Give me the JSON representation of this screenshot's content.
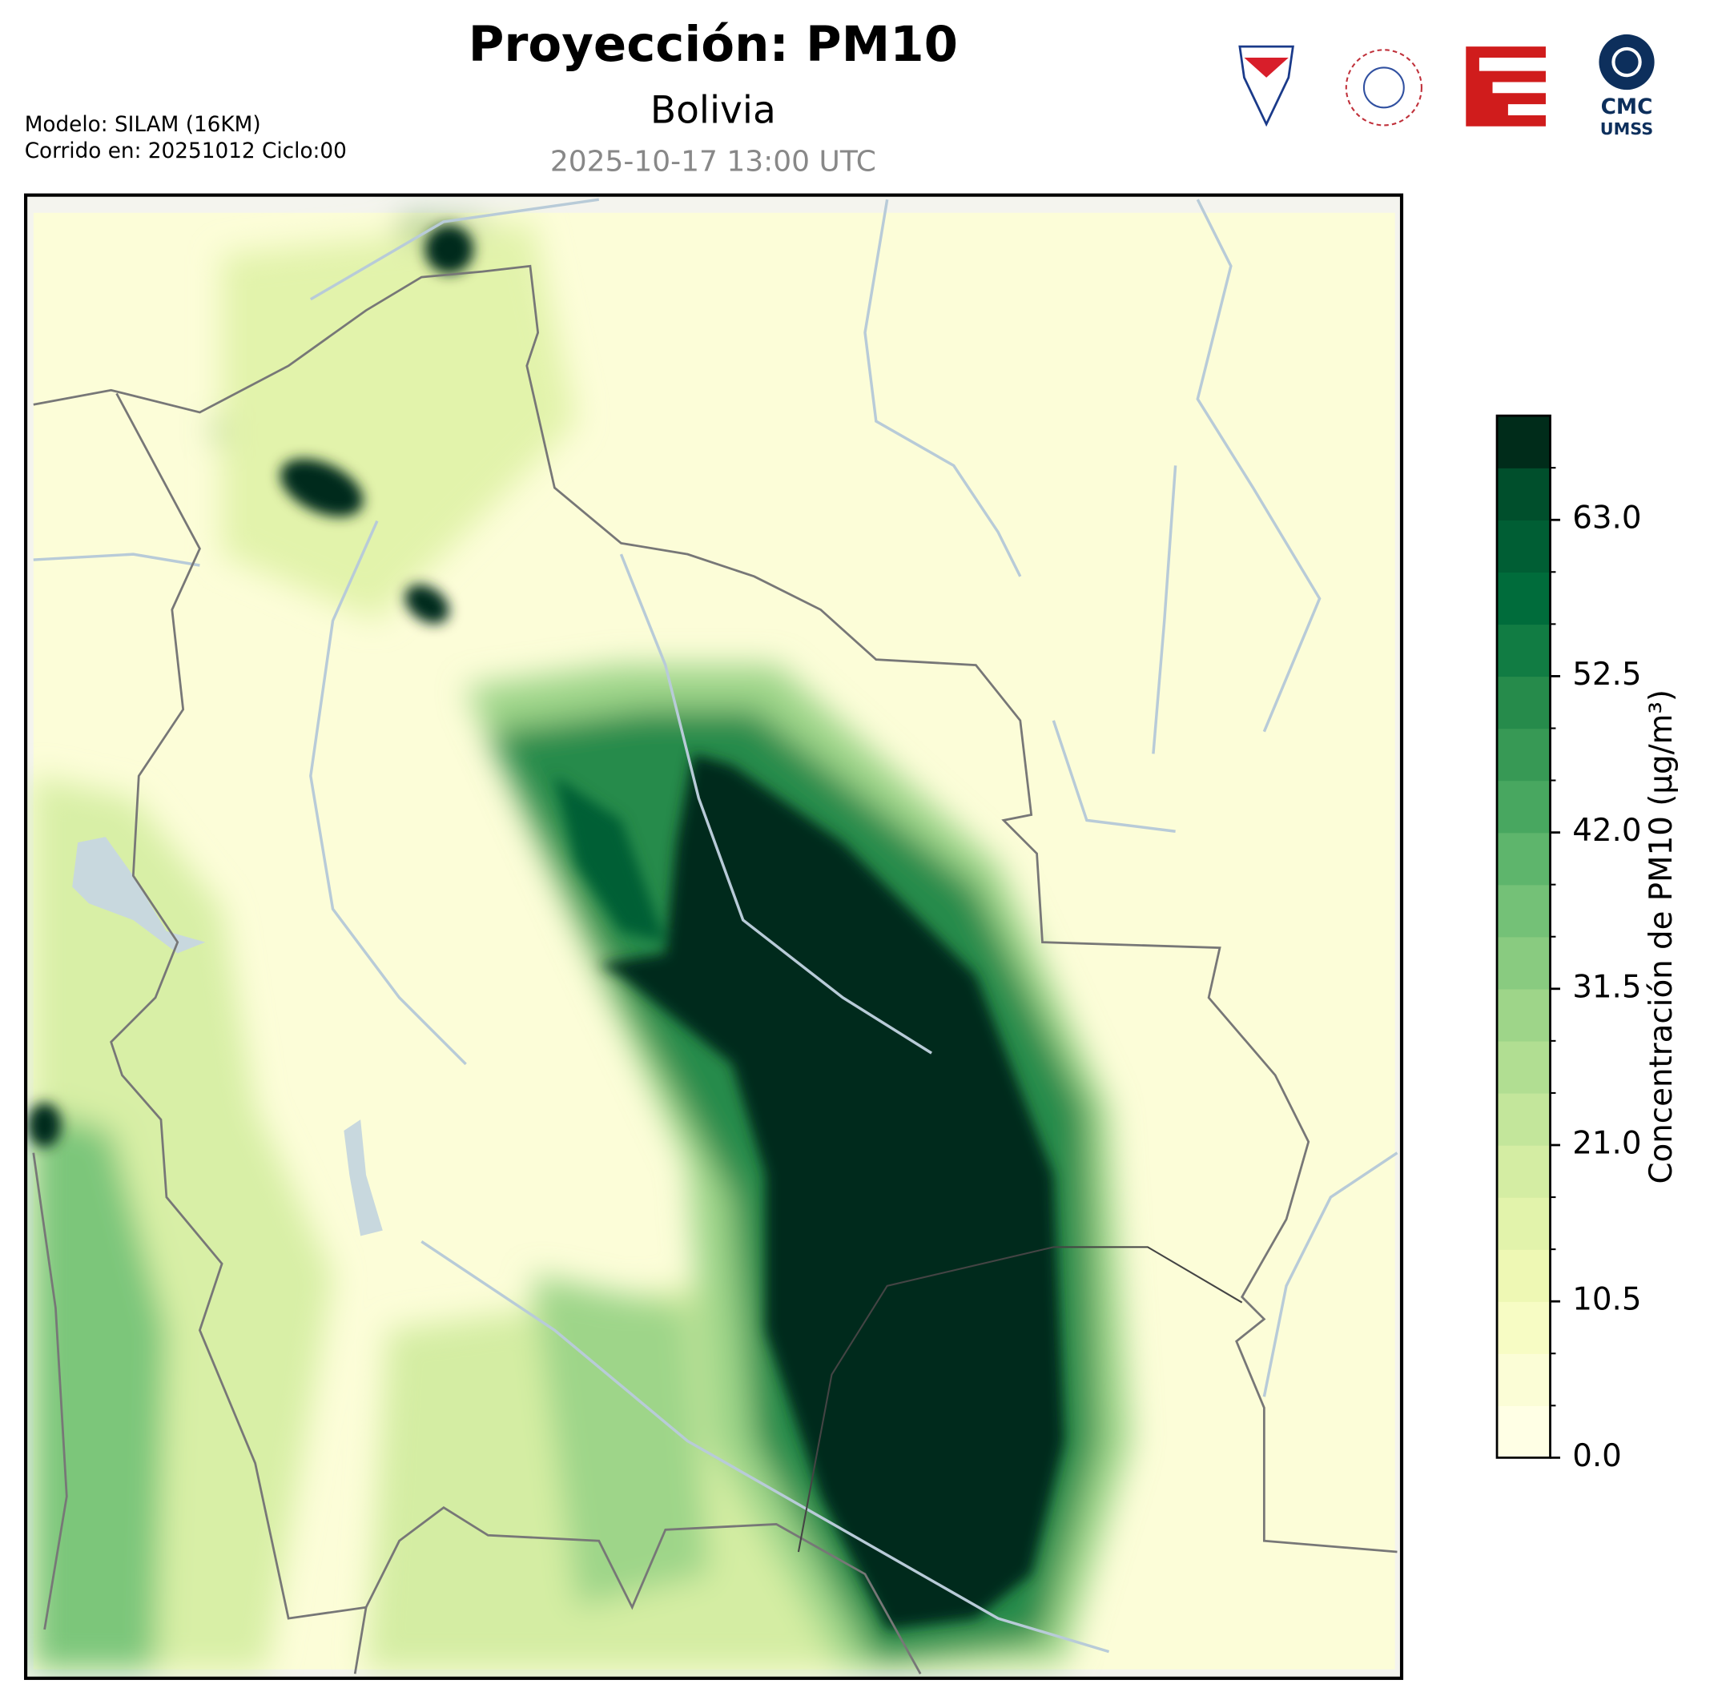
{
  "header": {
    "title": "Proyección: PM10",
    "subtitle": "Bolivia",
    "datetime": "2025-10-17 13:00 UTC",
    "model": "Modelo: SILAM (16KM)",
    "run": "Corrido en: 20251012 Ciclo:00"
  },
  "logos": {
    "cmc": "CMC",
    "umss": "UMSS"
  },
  "colorbar": {
    "label": "Concentración de PM10 (µg/m³)",
    "lim": [
      0,
      70
    ],
    "ticks": [
      {
        "value": 0,
        "label": "0.0"
      },
      {
        "value": 10.5,
        "label": "10.5"
      },
      {
        "value": 21,
        "label": "21.0"
      },
      {
        "value": 31.5,
        "label": "31.5"
      },
      {
        "value": 42,
        "label": "42.0"
      },
      {
        "value": 52.5,
        "label": "52.5"
      },
      {
        "value": 63,
        "label": "63.0"
      }
    ],
    "colors": [
      "#ffffe5",
      "#fbfdd6",
      "#f7fcc4",
      "#eef8b4",
      "#e2f3ab",
      "#d4eda3",
      "#c3e69b",
      "#b1de92",
      "#9ed589",
      "#89cb80",
      "#74c177",
      "#5eb56c",
      "#48a760",
      "#379955",
      "#268b4b",
      "#117c43",
      "#006c3b",
      "#005e34",
      "#004f2c",
      "#002c1a"
    ]
  }
}
